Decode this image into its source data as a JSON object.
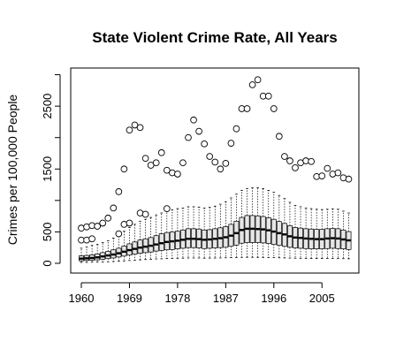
{
  "chart_data": {
    "type": "boxplot",
    "title": "State Violent Crime Rate, All Years",
    "xlabel": "",
    "ylabel": "Crimes per 100,000 People",
    "x_tick_labels": [
      "1960",
      "1969",
      "1978",
      "1987",
      "1996",
      "2005"
    ],
    "y_tick_labels": [
      "0",
      "500",
      "1500",
      "2500"
    ],
    "ylim": [
      0,
      3050
    ],
    "grid": false,
    "box_fill": "#e6e6e6",
    "line_color": "#000000",
    "years": [
      1960,
      1961,
      1962,
      1963,
      1964,
      1965,
      1966,
      1967,
      1968,
      1969,
      1970,
      1971,
      1972,
      1973,
      1974,
      1975,
      1976,
      1977,
      1978,
      1979,
      1980,
      1981,
      1982,
      1983,
      1984,
      1985,
      1986,
      1987,
      1988,
      1989,
      1990,
      1991,
      1992,
      1993,
      1994,
      1995,
      1996,
      1997,
      1998,
      1999,
      2000,
      2001,
      2002,
      2003,
      2004,
      2005,
      2006,
      2007,
      2008,
      2009,
      2010
    ],
    "medians": [
      75,
      80,
      85,
      95,
      110,
      125,
      140,
      160,
      185,
      210,
      230,
      250,
      265,
      280,
      300,
      320,
      340,
      350,
      360,
      375,
      390,
      390,
      385,
      375,
      380,
      390,
      400,
      415,
      440,
      480,
      530,
      550,
      550,
      545,
      540,
      525,
      505,
      480,
      460,
      430,
      410,
      405,
      395,
      390,
      385,
      385,
      395,
      400,
      395,
      380,
      365
    ],
    "q1": [
      40,
      45,
      50,
      55,
      65,
      75,
      85,
      100,
      115,
      130,
      145,
      160,
      170,
      180,
      195,
      205,
      215,
      220,
      230,
      240,
      250,
      250,
      245,
      235,
      240,
      245,
      250,
      255,
      270,
      290,
      320,
      330,
      330,
      330,
      325,
      315,
      300,
      285,
      270,
      255,
      245,
      240,
      235,
      230,
      230,
      230,
      235,
      240,
      235,
      230,
      220
    ],
    "q3": [
      120,
      125,
      135,
      150,
      170,
      190,
      215,
      240,
      275,
      310,
      340,
      370,
      390,
      410,
      440,
      470,
      490,
      500,
      510,
      530,
      550,
      550,
      545,
      530,
      535,
      550,
      565,
      585,
      620,
      670,
      730,
      760,
      760,
      755,
      745,
      725,
      700,
      665,
      635,
      600,
      570,
      560,
      550,
      545,
      540,
      540,
      550,
      555,
      550,
      530,
      505
    ],
    "whisker_low": [
      15,
      15,
      18,
      20,
      22,
      25,
      28,
      32,
      38,
      45,
      50,
      55,
      60,
      65,
      70,
      72,
      75,
      78,
      80,
      82,
      85,
      85,
      84,
      82,
      83,
      84,
      86,
      88,
      90,
      92,
      95,
      96,
      96,
      95,
      94,
      92,
      90,
      88,
      86,
      84,
      82,
      80,
      78,
      78,
      77,
      76,
      76,
      76,
      75,
      74,
      72
    ],
    "whisker_high": [
      240,
      260,
      285,
      300,
      330,
      360,
      400,
      450,
      510,
      570,
      620,
      670,
      700,
      730,
      770,
      800,
      830,
      850,
      870,
      880,
      900,
      900,
      895,
      880,
      890,
      910,
      940,
      980,
      1040,
      1100,
      1160,
      1190,
      1200,
      1200,
      1190,
      1160,
      1130,
      1080,
      1030,
      970,
      920,
      900,
      880,
      870,
      860,
      855,
      860,
      865,
      860,
      830,
      800
    ],
    "outliers": [
      {
        "x": 1960,
        "y": 560
      },
      {
        "x": 1960,
        "y": 370
      },
      {
        "x": 1961,
        "y": 580
      },
      {
        "x": 1961,
        "y": 370
      },
      {
        "x": 1962,
        "y": 600
      },
      {
        "x": 1962,
        "y": 390
      },
      {
        "x": 1963,
        "y": 590
      },
      {
        "x": 1964,
        "y": 640
      },
      {
        "x": 1965,
        "y": 720
      },
      {
        "x": 1966,
        "y": 880
      },
      {
        "x": 1967,
        "y": 1140
      },
      {
        "x": 1967,
        "y": 470
      },
      {
        "x": 1968,
        "y": 1500
      },
      {
        "x": 1968,
        "y": 620
      },
      {
        "x": 1969,
        "y": 2120
      },
      {
        "x": 1969,
        "y": 640
      },
      {
        "x": 1970,
        "y": 2200
      },
      {
        "x": 1971,
        "y": 2160
      },
      {
        "x": 1971,
        "y": 800
      },
      {
        "x": 1972,
        "y": 1670
      },
      {
        "x": 1972,
        "y": 780
      },
      {
        "x": 1973,
        "y": 1560
      },
      {
        "x": 1974,
        "y": 1600
      },
      {
        "x": 1975,
        "y": 1760
      },
      {
        "x": 1976,
        "y": 1480
      },
      {
        "x": 1976,
        "y": 870
      },
      {
        "x": 1977,
        "y": 1440
      },
      {
        "x": 1978,
        "y": 1420
      },
      {
        "x": 1979,
        "y": 1600
      },
      {
        "x": 1980,
        "y": 2000
      },
      {
        "x": 1981,
        "y": 2280
      },
      {
        "x": 1982,
        "y": 2100
      },
      {
        "x": 1983,
        "y": 1900
      },
      {
        "x": 1984,
        "y": 1700
      },
      {
        "x": 1985,
        "y": 1610
      },
      {
        "x": 1986,
        "y": 1500
      },
      {
        "x": 1987,
        "y": 1590
      },
      {
        "x": 1988,
        "y": 1910
      },
      {
        "x": 1989,
        "y": 2140
      },
      {
        "x": 1990,
        "y": 2460
      },
      {
        "x": 1991,
        "y": 2460
      },
      {
        "x": 1992,
        "y": 2840
      },
      {
        "x": 1993,
        "y": 2920
      },
      {
        "x": 1994,
        "y": 2660
      },
      {
        "x": 1995,
        "y": 2660
      },
      {
        "x": 1996,
        "y": 2460
      },
      {
        "x": 1997,
        "y": 2020
      },
      {
        "x": 1998,
        "y": 1700
      },
      {
        "x": 1999,
        "y": 1630
      },
      {
        "x": 2000,
        "y": 1520
      },
      {
        "x": 2001,
        "y": 1600
      },
      {
        "x": 2002,
        "y": 1630
      },
      {
        "x": 2003,
        "y": 1620
      },
      {
        "x": 2004,
        "y": 1380
      },
      {
        "x": 2005,
        "y": 1390
      },
      {
        "x": 2006,
        "y": 1510
      },
      {
        "x": 2007,
        "y": 1420
      },
      {
        "x": 2008,
        "y": 1440
      },
      {
        "x": 2009,
        "y": 1360
      },
      {
        "x": 2010,
        "y": 1340
      }
    ]
  }
}
